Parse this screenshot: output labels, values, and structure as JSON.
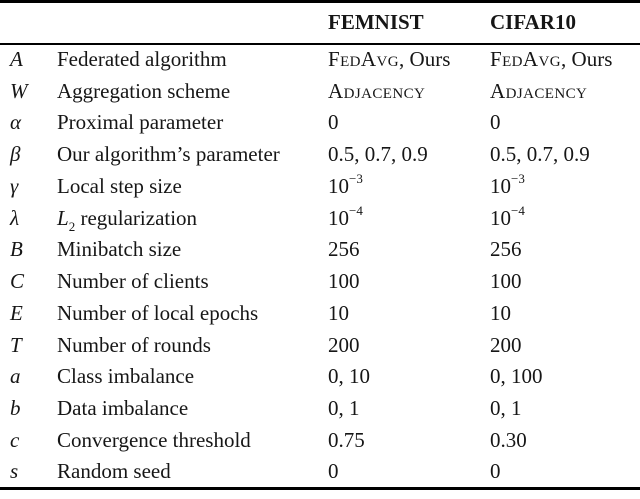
{
  "table": {
    "headers": {
      "col3": "FEMNIST",
      "col4": "CIFAR10"
    },
    "rows": [
      {
        "sym": "A",
        "desc": "Federated algorithm",
        "femnist_sc": "FedAvg",
        "femnist_rest": ", Ours",
        "cifar10_sc": "FedAvg",
        "cifar10_rest": ", Ours"
      },
      {
        "sym": "W",
        "desc": "Aggregation scheme",
        "femnist_sc": "Adjacency",
        "cifar10_sc": "Adjacency"
      },
      {
        "sym": "α",
        "desc": "Proximal parameter",
        "femnist": "0",
        "cifar10": "0"
      },
      {
        "sym": "β",
        "desc": "Our algorithm’s parameter",
        "femnist": "0.5, 0.7, 0.9",
        "cifar10": "0.5, 0.7, 0.9"
      },
      {
        "sym": "γ",
        "desc": "Local step size",
        "femnist_mant": "10",
        "femnist_exp": "−3",
        "cifar10_mant": "10",
        "cifar10_exp": "−3"
      },
      {
        "sym": "λ",
        "desc_var": "L",
        "desc_sub": "2",
        "desc_rest": " regularization",
        "femnist_mant": "10",
        "femnist_exp": "−4",
        "cifar10_mant": "10",
        "cifar10_exp": "−4"
      },
      {
        "sym": "B",
        "desc": "Minibatch size",
        "femnist": "256",
        "cifar10": "256"
      },
      {
        "sym": "C",
        "desc": "Number of clients",
        "femnist": "100",
        "cifar10": "100"
      },
      {
        "sym": "E",
        "desc": "Number of local epochs",
        "femnist": "10",
        "cifar10": "10"
      },
      {
        "sym": "T",
        "desc": "Number of rounds",
        "femnist": "200",
        "cifar10": "200"
      },
      {
        "sym": "a",
        "desc": "Class imbalance",
        "femnist": "0, 10",
        "cifar10": "0, 100"
      },
      {
        "sym": "b",
        "desc": "Data imbalance",
        "femnist": "0, 1",
        "cifar10": "0, 1"
      },
      {
        "sym": "c",
        "desc": "Convergence threshold",
        "femnist": "0.75",
        "cifar10": "0.30"
      },
      {
        "sym": "s",
        "desc": "Random seed",
        "femnist": "0",
        "cifar10": "0"
      }
    ]
  },
  "colors": {
    "text": "#161616",
    "rule": "#000000",
    "background": "#ffffff"
  }
}
